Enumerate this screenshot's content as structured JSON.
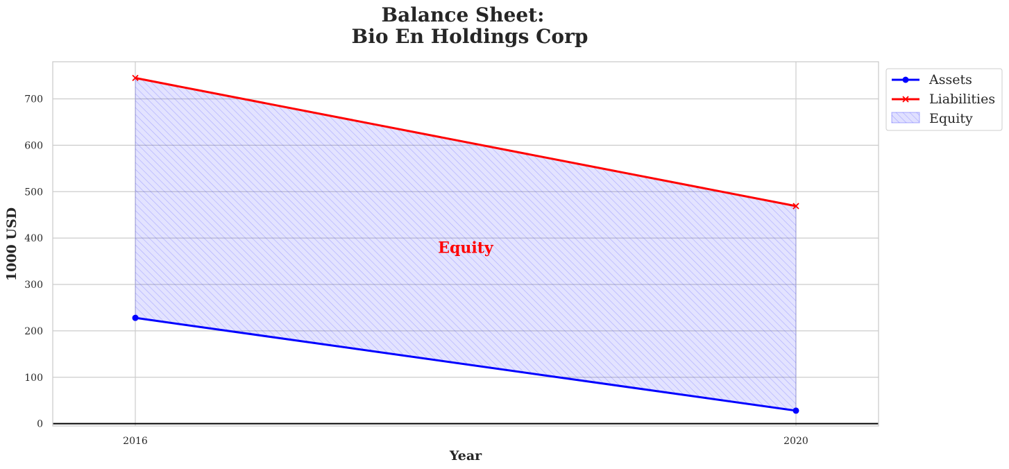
{
  "chart_data": {
    "type": "area",
    "title_line1": "Balance Sheet:",
    "title_line2": "Bio En Holdings Corp",
    "xlabel": "Year",
    "ylabel": "1000 USD",
    "x": [
      2016,
      2020
    ],
    "x_tick_labels": [
      "2016",
      "2020"
    ],
    "xlim": [
      2015.5,
      2020.5
    ],
    "ylim": [
      -5,
      780
    ],
    "y_ticks": [
      0,
      100,
      200,
      300,
      400,
      500,
      600,
      700
    ],
    "y_tick_labels": [
      "0",
      "100",
      "200",
      "300",
      "400",
      "500",
      "600",
      "700"
    ],
    "grid": true,
    "legend_position": "outside-top-right",
    "series": [
      {
        "name": "Assets",
        "values": [
          228,
          28
        ],
        "color": "#0000ff",
        "marker": "circle"
      },
      {
        "name": "Liabilities",
        "values": [
          745,
          469
        ],
        "color": "#ff0000",
        "marker": "x"
      }
    ],
    "fill": {
      "name": "Equity",
      "between": [
        "Assets",
        "Liabilities"
      ],
      "color": "#0000ff",
      "hatch": "////"
    },
    "annotation": {
      "text": "Equity",
      "x": 2018,
      "y": 368,
      "color": "#ff0000"
    },
    "zero_line": true
  }
}
